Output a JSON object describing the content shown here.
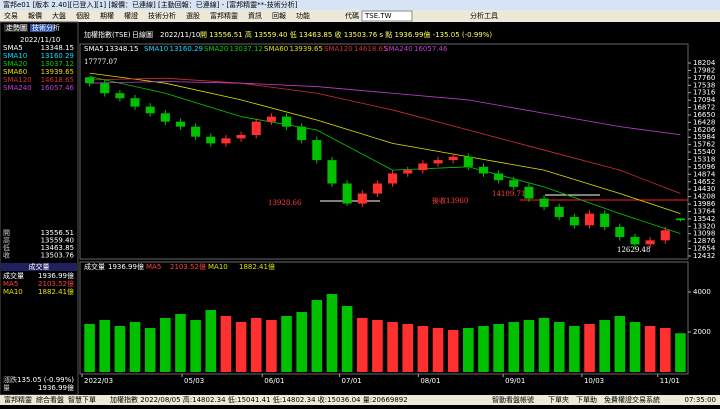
{
  "window": {
    "title": "富邦e01 [版本 2.40][已登入][1] [報價：已連線] [主動回報：已連線] - [富邦精靈**-技術分析]"
  },
  "menu": [
    "交易",
    "報價",
    "大盤",
    "個股",
    "期權",
    "權證",
    "技術分析",
    "選股",
    "富邦精靈",
    "資訊",
    "回報",
    "功能"
  ],
  "code_label": "代碼",
  "code_value": "TSE.TW",
  "tool_menu": "分析工具",
  "tabs": [
    "走勢圖",
    "技術分析"
  ],
  "left_panel": {
    "ohlc": [
      {
        "label": "開",
        "value": "13556.51"
      },
      {
        "label": "高",
        "value": "13559.40"
      },
      {
        "label": "低",
        "value": "13463.85"
      },
      {
        "label": "收",
        "value": "13503.76"
      }
    ],
    "volume_header": "成交量",
    "change_label": "漲跌",
    "change_value": "-135.05 (-0.99%)",
    "vol_label": "量",
    "vol_value": "1936.99億"
  },
  "status_bar": {
    "left": [
      "富邦精靈",
      "綜合看盤",
      "智慧下單"
    ],
    "quote": "加權指數 2022/08/05 高:14802.34 低:15041.41 低:14802.34 收:15036.04 量:20669892",
    "right": [
      "智動看盤",
      "帳號",
      "下單夾",
      "下單助",
      "免費權證",
      "交易系統"
    ],
    "time": "07:35:00"
  },
  "chart_data": [
    {
      "type": "candlestick",
      "title": "加權指數(TSE)",
      "period": "日線圖",
      "date": "2022/11/10",
      "quote_text": "開 13556.51  高 13559.40  低 13463.85  收 13503.76  s 點  1936.99億  -135.05 (-0.99%)",
      "up_color": "#ff3030",
      "down_color": "#00c000",
      "open": [
        17777,
        17600,
        17300,
        17150,
        16900,
        16700,
        16450,
        16300,
        16000,
        15800,
        15950,
        16050,
        16450,
        16600,
        16300,
        15900,
        15300,
        14600,
        14000,
        14300,
        14600,
        14900,
        15000,
        15200,
        15300,
        15400,
        15100,
        14900,
        14700,
        14500,
        14150,
        13900,
        13600,
        13350,
        13700,
        13300,
        13000,
        12780,
        12900,
        13556
      ],
      "high": [
        17777,
        17700,
        17400,
        17250,
        17000,
        16800,
        16550,
        16400,
        16100,
        16050,
        16150,
        16550,
        16700,
        16700,
        16400,
        16000,
        15400,
        14700,
        14400,
        14700,
        15000,
        15100,
        15300,
        15400,
        15500,
        15500,
        15200,
        15000,
        14800,
        14600,
        14250,
        14000,
        13700,
        13800,
        13800,
        13400,
        13100,
        13000,
        13300,
        13559
      ],
      "low": [
        17500,
        17200,
        17050,
        16800,
        16600,
        16350,
        16200,
        15900,
        15700,
        15700,
        15850,
        15950,
        16350,
        16200,
        15800,
        15200,
        14500,
        13928,
        13900,
        14200,
        14500,
        14800,
        14900,
        15100,
        15200,
        15000,
        14800,
        14600,
        14400,
        14050,
        13800,
        13500,
        13250,
        13250,
        13200,
        12900,
        12629,
        12680,
        12800,
        13463
      ],
      "close": [
        17600,
        17300,
        17150,
        16900,
        16700,
        16450,
        16300,
        16000,
        15800,
        15950,
        16050,
        16450,
        16600,
        16300,
        15900,
        15300,
        14600,
        14000,
        14300,
        14600,
        14900,
        15000,
        15200,
        15300,
        15400,
        15100,
        14900,
        14700,
        14500,
        14150,
        13900,
        13600,
        13350,
        13700,
        13300,
        13000,
        12780,
        12900,
        13200,
        13504
      ],
      "ylim": [
        12432,
        18204
      ],
      "yticks": [
        12432,
        12654,
        12876,
        13098,
        13320,
        13542,
        13764,
        13986,
        14208,
        14430,
        14652,
        14874,
        15096,
        15318,
        15540,
        15762,
        15984,
        16206,
        16428,
        16650,
        16872,
        17094,
        17316,
        17538,
        17760,
        17982,
        18204
      ],
      "ma_x": [
        0,
        5,
        10,
        15,
        20,
        25,
        30,
        35,
        39
      ],
      "ma_series": [
        {
          "name": "SMA5",
          "value": "13348.15",
          "color": "#ffffff"
        },
        {
          "name": "SMA10",
          "value": "13160.29",
          "color": "#00e0ff"
        },
        {
          "name": "SMA20",
          "value": "13037.12",
          "color": "#00d000",
          "values": [
            17800,
            17300,
            16600,
            16200,
            15000,
            15100,
            14500,
            13700,
            13100
          ]
        },
        {
          "name": "SMA60",
          "value": "13939.65",
          "color": "#e0e000",
          "values": [
            17900,
            17600,
            17100,
            16500,
            15800,
            15400,
            15000,
            14300,
            13700
          ]
        },
        {
          "name": "SMA120",
          "value": "14618.65",
          "color": "#d03030",
          "values": [
            17700,
            17750,
            17600,
            17300,
            16800,
            16200,
            15600,
            15000,
            14300
          ]
        },
        {
          "name": "SMA240",
          "value": "16057.46",
          "color": "#c040d0",
          "values": [
            17600,
            17650,
            17600,
            17500,
            17300,
            17100,
            16700,
            16300,
            16057
          ]
        }
      ],
      "annotations": [
        "17777.07",
        "13928.66",
        "後收13960",
        "14109.71",
        "12629.48"
      ],
      "x_labels": [
        "2022/03",
        "05/03",
        "06/01",
        "07/01",
        "08/01",
        "09/01",
        "10/03",
        "11/01"
      ],
      "x_label_index": [
        0,
        6.6,
        11.9,
        17,
        22.2,
        27.8,
        33,
        38
      ]
    },
    {
      "type": "bar",
      "legend": [
        {
          "name": "成交量",
          "value": "1936.99億",
          "color": "#ffffff"
        },
        {
          "name": "MA5",
          "value": "2103.52億",
          "color": "#ff4040"
        },
        {
          "name": "MA10",
          "value": "1882.41億",
          "color": "#e0e000"
        }
      ],
      "values": [
        2400,
        2600,
        2300,
        2500,
        2200,
        2700,
        2900,
        2600,
        3100,
        2800,
        2500,
        2700,
        2600,
        2800,
        3000,
        3600,
        3900,
        3300,
        2700,
        2600,
        2500,
        2400,
        2300,
        2200,
        2100,
        2200,
        2300,
        2400,
        2500,
        2600,
        2700,
        2500,
        2300,
        2400,
        2600,
        2800,
        2500,
        2300,
        2200,
        1937
      ],
      "ylim": [
        0,
        5000
      ],
      "yticks": [
        2000,
        4000
      ]
    }
  ]
}
